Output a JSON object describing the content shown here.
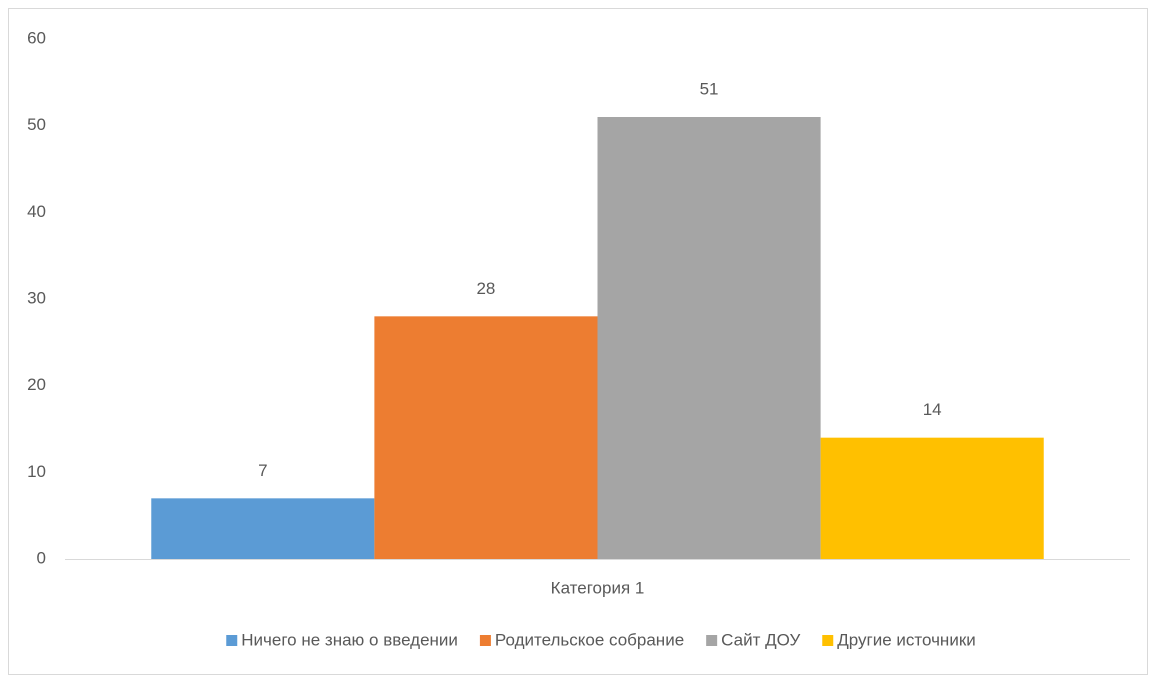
{
  "chart_data": {
    "type": "bar",
    "categories": [
      "Категория 1"
    ],
    "series": [
      {
        "name": "Ничего не знаю о введении",
        "color": "#5b9bd5",
        "values": [
          7
        ]
      },
      {
        "name": "Родительское собрание",
        "color": "#ed7d31",
        "values": [
          28
        ]
      },
      {
        "name": "Сайт ДОУ",
        "color": "#a5a5a5",
        "values": [
          51
        ]
      },
      {
        "name": "Другие источники",
        "color": "#ffc000",
        "values": [
          14
        ]
      }
    ],
    "ylim": [
      0,
      60
    ],
    "yticks": [
      0,
      10,
      20,
      30,
      40,
      50,
      60
    ],
    "grid": false,
    "legend": "bottom"
  }
}
